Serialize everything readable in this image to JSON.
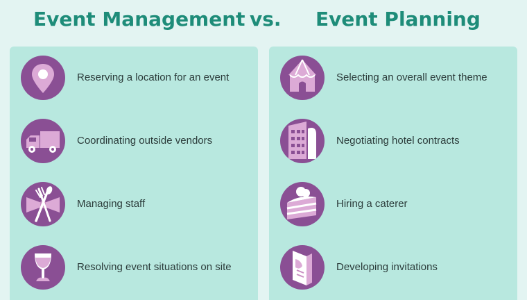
{
  "header": {
    "left_title": "Event Management",
    "vs": "vs.",
    "right_title": "Event Planning"
  },
  "management": {
    "items": [
      {
        "label": "Reserving a location for an event",
        "icon": "location-pin-icon"
      },
      {
        "label": "Coordinating outside vendors",
        "icon": "delivery-truck-icon"
      },
      {
        "label": "Managing staff",
        "icon": "bowtie-cutlery-icon"
      },
      {
        "label": "Resolving event situations on site",
        "icon": "wine-glass-icon"
      }
    ]
  },
  "planning": {
    "items": [
      {
        "label": "Selecting an overall event theme",
        "icon": "tent-icon"
      },
      {
        "label": "Negotiating hotel contracts",
        "icon": "hotel-building-icon"
      },
      {
        "label": "Hiring a caterer",
        "icon": "cake-slice-icon"
      },
      {
        "label": "Developing invitations",
        "icon": "invitation-card-icon"
      }
    ]
  },
  "colors": {
    "background": "#e3f4f2",
    "panel": "#b8e8df",
    "title": "#1e8c79",
    "icon_circle": "#8a4f94",
    "icon_fill": "#dcaad6",
    "text": "#2b3b3a"
  }
}
